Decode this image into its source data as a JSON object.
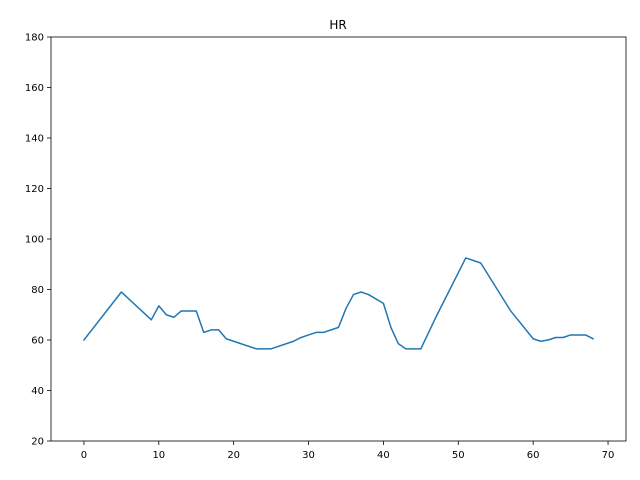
{
  "chart_data": {
    "type": "line",
    "title": "HR",
    "xlabel": "",
    "ylabel": "",
    "xlim": [
      -4.4,
      72.4
    ],
    "ylim": [
      20,
      180
    ],
    "x_ticks": [
      0,
      10,
      20,
      30,
      40,
      50,
      60,
      70
    ],
    "y_ticks": [
      20,
      40,
      60,
      80,
      100,
      120,
      140,
      160,
      180
    ],
    "grid": false,
    "legend": "none",
    "series": [
      {
        "color": "#1f77b4",
        "x": [
          0,
          5,
          9,
          10,
          11,
          12,
          13,
          14,
          15,
          16,
          17,
          18,
          19,
          23,
          25,
          28,
          29,
          30,
          31,
          32,
          34,
          35,
          36,
          37,
          38,
          40,
          41,
          42,
          43,
          45,
          47,
          51,
          53,
          57,
          60,
          61,
          62,
          63,
          64,
          65,
          66,
          67,
          68
        ],
        "values": [
          60,
          79,
          68,
          73.5,
          70,
          69,
          71.5,
          71.5,
          71.5,
          63,
          64,
          64,
          60.5,
          56.5,
          56.5,
          59.5,
          61,
          62,
          63,
          63,
          65,
          72.5,
          78,
          79,
          78,
          74.5,
          65,
          58.5,
          56.5,
          56.5,
          69,
          92.5,
          90.5,
          71.5,
          60.5,
          59.5,
          60,
          61,
          61,
          62,
          62,
          62,
          60.5
        ]
      }
    ]
  }
}
